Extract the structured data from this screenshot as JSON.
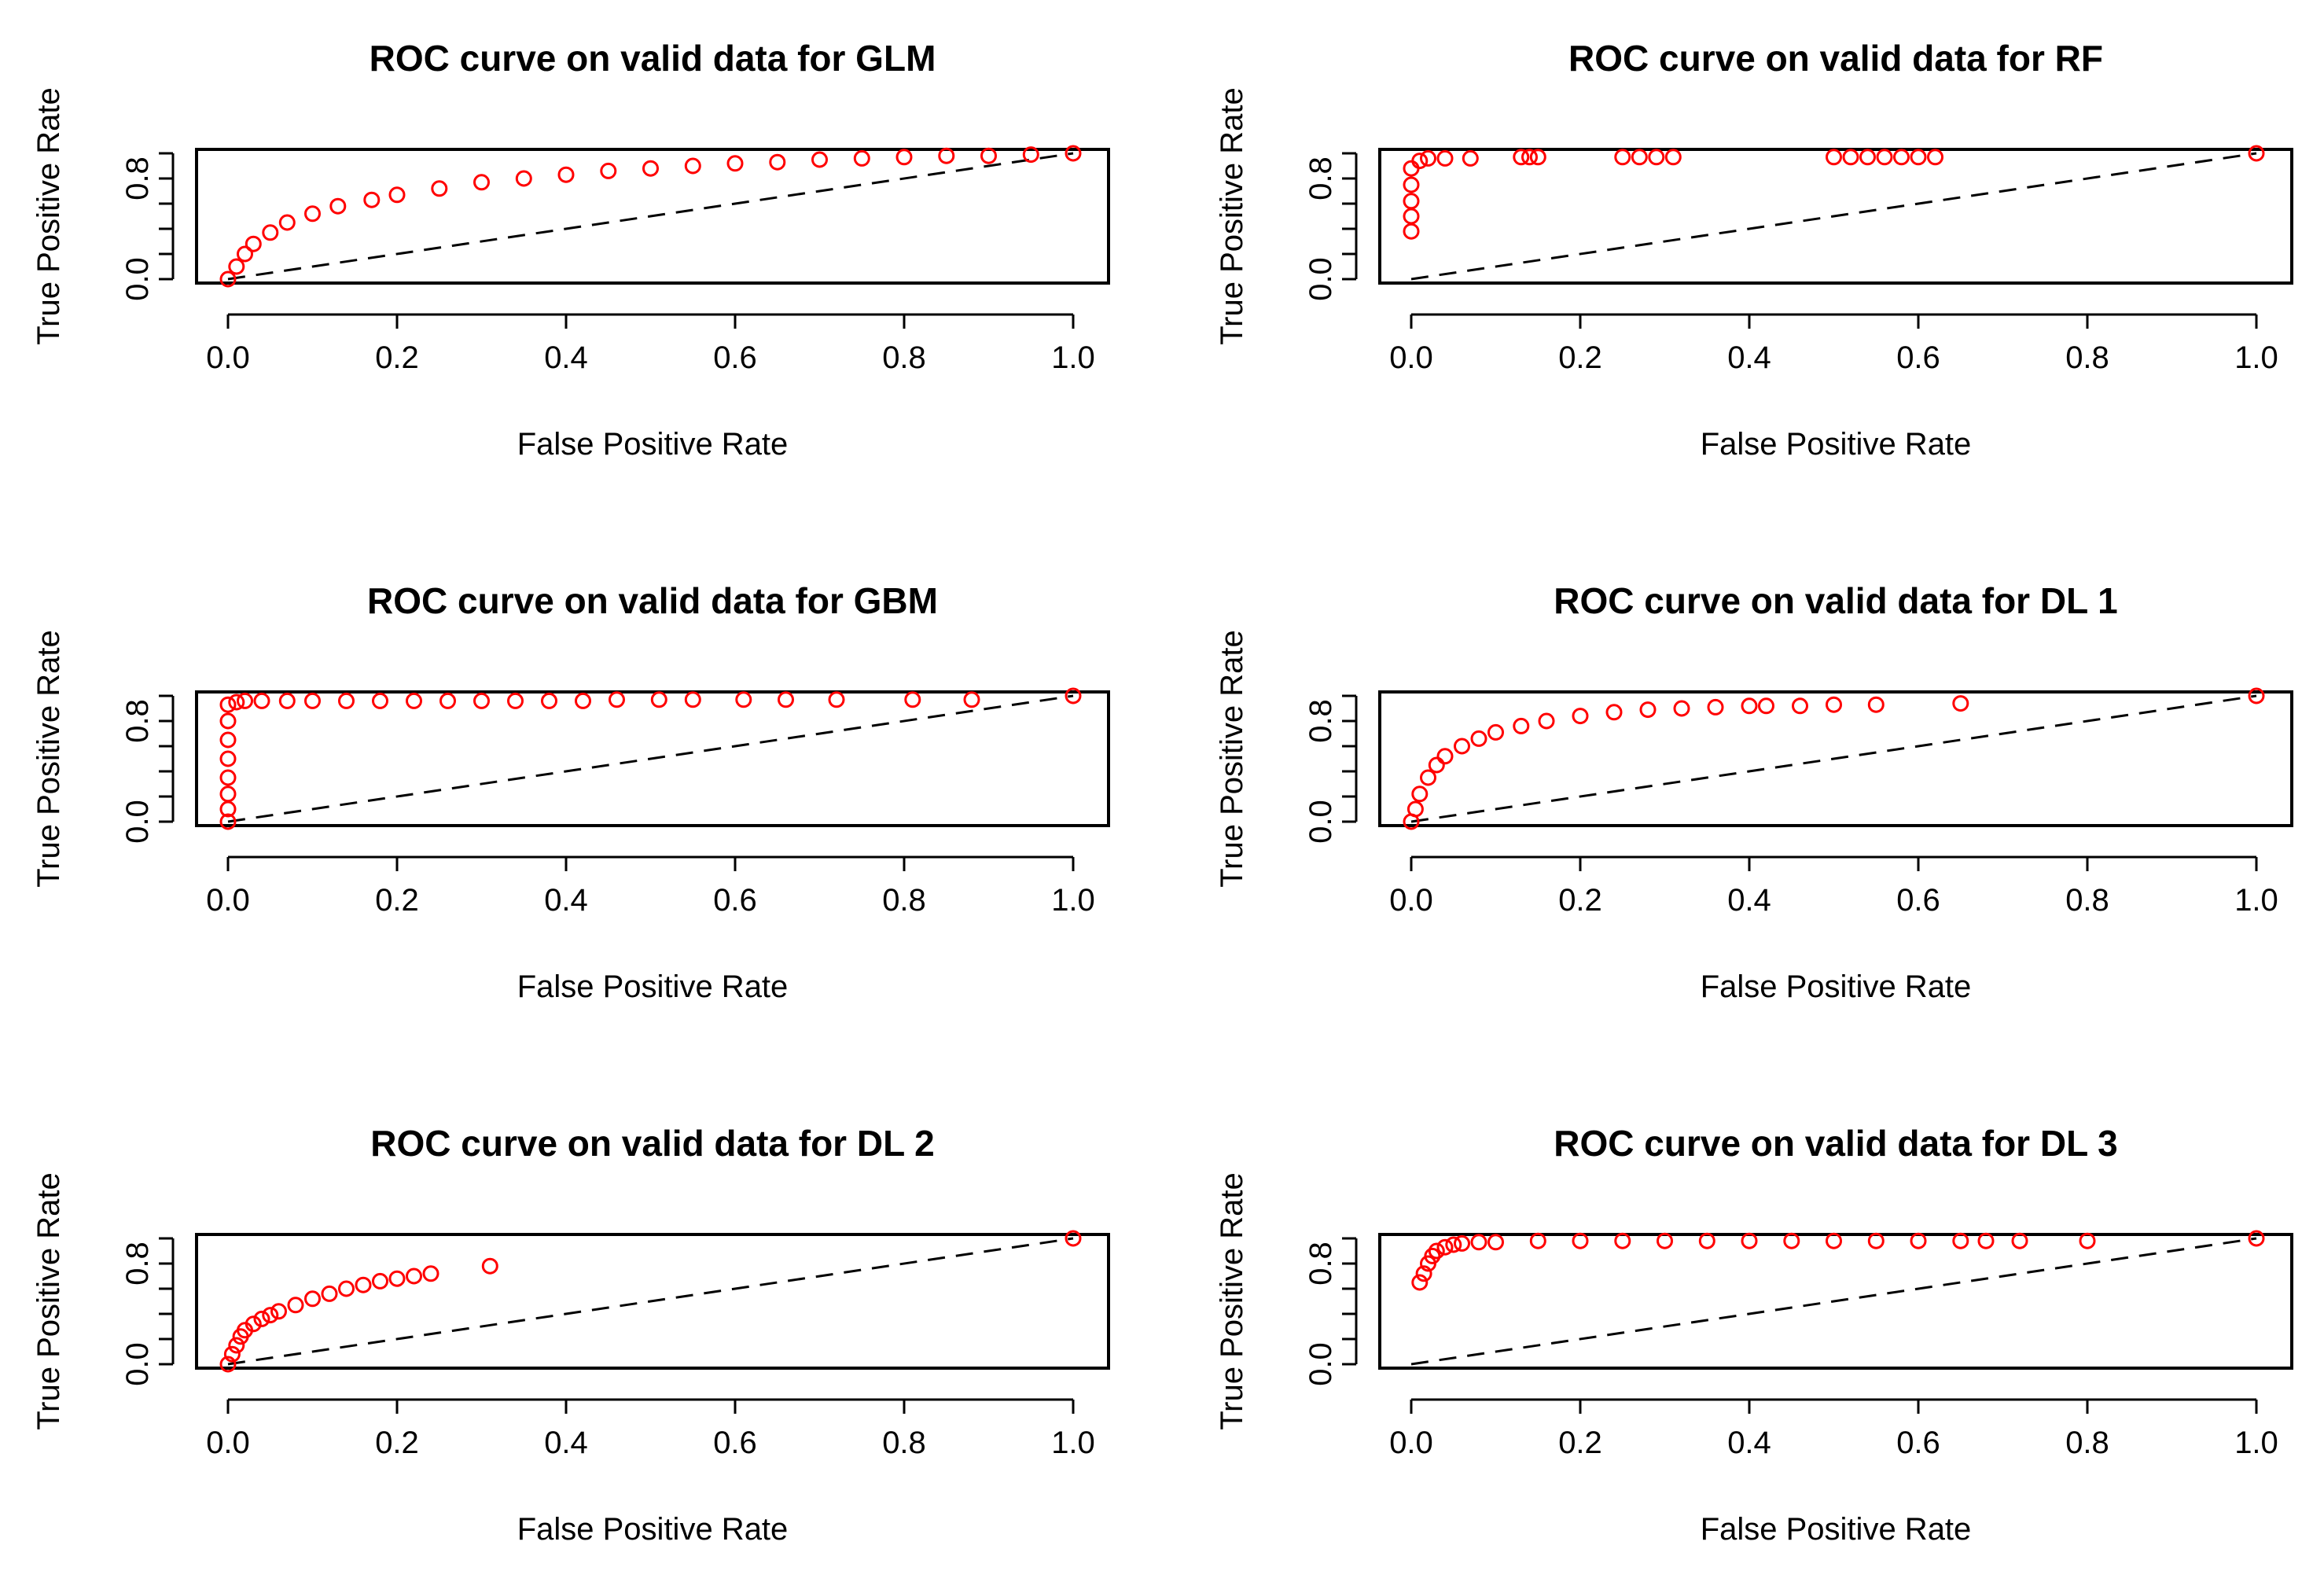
{
  "colors": {
    "points": "#ff0000",
    "axes": "#000000",
    "reference": "#000000",
    "background": "#ffffff"
  },
  "chart_data": [
    {
      "type": "scatter",
      "title": "ROC curve on valid data for GLM",
      "xlabel": "False Positive Rate",
      "ylabel": "True Positive Rate",
      "xlim": [
        0,
        1
      ],
      "ylim": [
        0,
        1
      ],
      "x_ticks": [
        "0.0",
        "0.2",
        "0.4",
        "0.6",
        "0.8",
        "1.0"
      ],
      "y_ticks": [
        "0.0",
        "0.8"
      ],
      "reference_line": [
        [
          0,
          0
        ],
        [
          1,
          1
        ]
      ],
      "series": [
        {
          "name": "ROC",
          "x": [
            0.0,
            0.01,
            0.02,
            0.03,
            0.05,
            0.07,
            0.1,
            0.13,
            0.17,
            0.2,
            0.25,
            0.3,
            0.35,
            0.4,
            0.45,
            0.5,
            0.55,
            0.6,
            0.65,
            0.7,
            0.75,
            0.8,
            0.85,
            0.9,
            0.95,
            1.0
          ],
          "y": [
            0.0,
            0.1,
            0.2,
            0.28,
            0.37,
            0.45,
            0.52,
            0.58,
            0.63,
            0.67,
            0.72,
            0.77,
            0.8,
            0.83,
            0.86,
            0.88,
            0.9,
            0.92,
            0.93,
            0.95,
            0.96,
            0.97,
            0.98,
            0.98,
            0.99,
            1.0
          ]
        }
      ]
    },
    {
      "type": "scatter",
      "title": "ROC curve on valid data for RF",
      "xlabel": "False Positive Rate",
      "ylabel": "True Positive Rate",
      "xlim": [
        0,
        1
      ],
      "ylim": [
        0,
        1
      ],
      "x_ticks": [
        "0.0",
        "0.2",
        "0.4",
        "0.6",
        "0.8",
        "1.0"
      ],
      "y_ticks": [
        "0.0",
        "0.8"
      ],
      "reference_line": [
        [
          0,
          0
        ],
        [
          1,
          1
        ]
      ],
      "series": [
        {
          "name": "ROC",
          "x": [
            0.0,
            0.0,
            0.0,
            0.0,
            0.0,
            0.01,
            0.02,
            0.04,
            0.07,
            0.13,
            0.14,
            0.15,
            0.25,
            0.27,
            0.29,
            0.31,
            0.5,
            0.52,
            0.54,
            0.56,
            0.58,
            0.6,
            0.62,
            1.0
          ],
          "y": [
            0.38,
            0.5,
            0.62,
            0.75,
            0.88,
            0.94,
            0.96,
            0.96,
            0.96,
            0.97,
            0.97,
            0.97,
            0.97,
            0.97,
            0.97,
            0.97,
            0.97,
            0.97,
            0.97,
            0.97,
            0.97,
            0.97,
            0.97,
            1.0
          ]
        }
      ]
    },
    {
      "type": "scatter",
      "title": "ROC curve on valid data for GBM",
      "xlabel": "False Positive Rate",
      "ylabel": "True Positive Rate",
      "xlim": [
        0,
        1
      ],
      "ylim": [
        0,
        1
      ],
      "x_ticks": [
        "0.0",
        "0.2",
        "0.4",
        "0.6",
        "0.8",
        "1.0"
      ],
      "y_ticks": [
        "0.0",
        "0.8"
      ],
      "reference_line": [
        [
          0,
          0
        ],
        [
          1,
          1
        ]
      ],
      "series": [
        {
          "name": "ROC",
          "x": [
            0.0,
            0.0,
            0.0,
            0.0,
            0.0,
            0.0,
            0.0,
            0.0,
            0.01,
            0.02,
            0.04,
            0.07,
            0.1,
            0.14,
            0.18,
            0.22,
            0.26,
            0.3,
            0.34,
            0.38,
            0.42,
            0.46,
            0.51,
            0.55,
            0.61,
            0.66,
            0.72,
            0.81,
            0.88,
            1.0
          ],
          "y": [
            0.0,
            0.1,
            0.22,
            0.35,
            0.5,
            0.65,
            0.8,
            0.93,
            0.95,
            0.96,
            0.96,
            0.96,
            0.96,
            0.96,
            0.96,
            0.96,
            0.96,
            0.96,
            0.96,
            0.96,
            0.96,
            0.97,
            0.97,
            0.97,
            0.97,
            0.97,
            0.97,
            0.97,
            0.97,
            1.0
          ]
        }
      ]
    },
    {
      "type": "scatter",
      "title": "ROC curve on valid data for DL 1",
      "xlabel": "False Positive Rate",
      "ylabel": "True Positive Rate",
      "xlim": [
        0,
        1
      ],
      "ylim": [
        0,
        1
      ],
      "x_ticks": [
        "0.0",
        "0.2",
        "0.4",
        "0.6",
        "0.8",
        "1.0"
      ],
      "y_ticks": [
        "0.0",
        "0.8"
      ],
      "reference_line": [
        [
          0,
          0
        ],
        [
          1,
          1
        ]
      ],
      "series": [
        {
          "name": "ROC",
          "x": [
            0.0,
            0.005,
            0.01,
            0.02,
            0.03,
            0.04,
            0.06,
            0.08,
            0.1,
            0.13,
            0.16,
            0.2,
            0.24,
            0.28,
            0.32,
            0.36,
            0.4,
            0.42,
            0.46,
            0.5,
            0.55,
            0.65,
            1.0
          ],
          "y": [
            0.0,
            0.1,
            0.22,
            0.35,
            0.45,
            0.52,
            0.6,
            0.66,
            0.71,
            0.76,
            0.8,
            0.84,
            0.87,
            0.89,
            0.9,
            0.91,
            0.92,
            0.92,
            0.92,
            0.93,
            0.93,
            0.94,
            1.0
          ]
        }
      ]
    },
    {
      "type": "scatter",
      "title": "ROC curve on valid data for DL 2",
      "xlabel": "False Positive Rate",
      "ylabel": "True Positive Rate",
      "xlim": [
        0,
        1
      ],
      "ylim": [
        0,
        1
      ],
      "x_ticks": [
        "0.0",
        "0.2",
        "0.4",
        "0.6",
        "0.8",
        "1.0"
      ],
      "y_ticks": [
        "0.0",
        "0.8"
      ],
      "reference_line": [
        [
          0,
          0
        ],
        [
          1,
          1
        ]
      ],
      "series": [
        {
          "name": "ROC",
          "x": [
            0.0,
            0.005,
            0.01,
            0.015,
            0.02,
            0.03,
            0.04,
            0.05,
            0.06,
            0.08,
            0.1,
            0.12,
            0.14,
            0.16,
            0.18,
            0.2,
            0.22,
            0.24,
            0.31,
            1.0
          ],
          "y": [
            0.0,
            0.08,
            0.15,
            0.22,
            0.27,
            0.32,
            0.36,
            0.39,
            0.42,
            0.47,
            0.52,
            0.56,
            0.6,
            0.63,
            0.66,
            0.68,
            0.7,
            0.72,
            0.78,
            1.0
          ]
        }
      ]
    },
    {
      "type": "scatter",
      "title": "ROC curve on valid data for DL 3",
      "xlabel": "False Positive Rate",
      "ylabel": "True Positive Rate",
      "xlim": [
        0,
        1
      ],
      "ylim": [
        0,
        1
      ],
      "x_ticks": [
        "0.0",
        "0.2",
        "0.4",
        "0.6",
        "0.8",
        "1.0"
      ],
      "y_ticks": [
        "0.0",
        "0.8"
      ],
      "reference_line": [
        [
          0,
          0
        ],
        [
          1,
          1
        ]
      ],
      "series": [
        {
          "name": "ROC",
          "x": [
            0.01,
            0.015,
            0.02,
            0.025,
            0.03,
            0.04,
            0.05,
            0.06,
            0.08,
            0.1,
            0.15,
            0.2,
            0.25,
            0.3,
            0.35,
            0.4,
            0.45,
            0.5,
            0.55,
            0.6,
            0.65,
            0.68,
            0.72,
            0.8,
            1.0
          ],
          "y": [
            0.65,
            0.72,
            0.8,
            0.86,
            0.9,
            0.93,
            0.95,
            0.96,
            0.97,
            0.97,
            0.98,
            0.98,
            0.98,
            0.98,
            0.98,
            0.98,
            0.98,
            0.98,
            0.98,
            0.98,
            0.98,
            0.98,
            0.98,
            0.98,
            1.0
          ]
        }
      ]
    }
  ]
}
